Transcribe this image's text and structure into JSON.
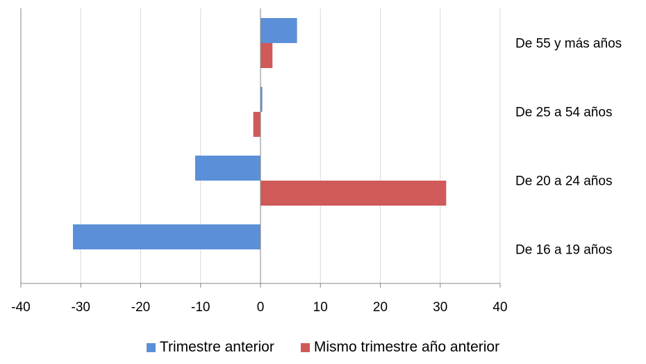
{
  "chart_data": {
    "type": "bar",
    "orientation": "horizontal",
    "categories": [
      "De 55 y más  años",
      "De 25 a  54 años",
      "De 20 a  24 años",
      "De 16 a  19 años"
    ],
    "series": [
      {
        "name": "Trimestre anterior",
        "color": "#5b8fd8",
        "values": [
          6.1,
          0.3,
          -10.9,
          -31.3
        ]
      },
      {
        "name": "Mismo trimestre  año anterior",
        "color": "#d05a5a",
        "values": [
          2.0,
          -1.2,
          31.0,
          null
        ]
      }
    ],
    "xlim": [
      -40,
      40
    ],
    "xticks": [
      "-40",
      "-30",
      "-20",
      "-10",
      "0",
      "10",
      "20",
      "30",
      "40"
    ],
    "grid": "vertical",
    "legend_position": "bottom"
  }
}
